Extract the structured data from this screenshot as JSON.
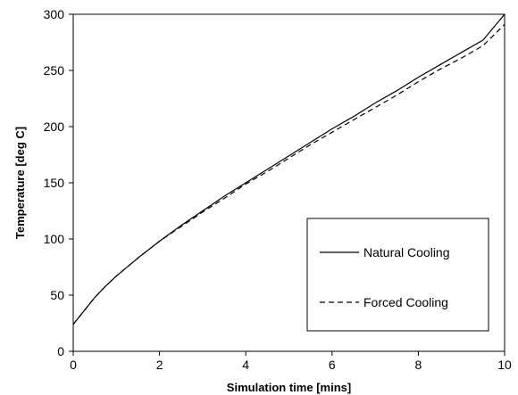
{
  "chart_data": {
    "type": "line",
    "title": "",
    "xlabel": "Simulation time [mins]",
    "ylabel": "Temperature [deg C]",
    "xlim": [
      0,
      10
    ],
    "ylim": [
      0,
      300
    ],
    "xticks": [
      0,
      2,
      4,
      6,
      8,
      10
    ],
    "yticks": [
      0,
      50,
      100,
      150,
      200,
      250,
      300
    ],
    "grid": false,
    "legend_position": "lower-right",
    "series": [
      {
        "name": "Natural Cooling",
        "style": "solid",
        "color": "#000000",
        "x": [
          0,
          0.25,
          0.5,
          0.75,
          1,
          1.5,
          2,
          2.5,
          3,
          3.5,
          4,
          4.5,
          5,
          5.5,
          6,
          6.5,
          7,
          7.5,
          8,
          8.5,
          9,
          9.5,
          10
        ],
        "y": [
          24,
          36,
          48,
          58,
          67,
          83,
          98,
          112,
          125,
          138,
          150,
          162,
          174,
          186,
          198,
          209,
          221,
          232,
          244,
          255,
          266,
          277,
          300
        ]
      },
      {
        "name": "Forced Cooling",
        "style": "dashed",
        "color": "#000000",
        "x": [
          0,
          0.25,
          0.5,
          0.75,
          1,
          1.5,
          2,
          2.5,
          3,
          3.5,
          4,
          4.5,
          5,
          5.5,
          6,
          6.5,
          7,
          7.5,
          8,
          8.5,
          9,
          9.5,
          10
        ],
        "y": [
          24,
          36,
          48,
          58,
          67,
          83,
          98,
          111,
          124,
          136,
          149,
          160,
          172,
          184,
          195,
          206,
          217,
          228,
          240,
          251,
          261,
          272,
          291
        ]
      }
    ]
  }
}
